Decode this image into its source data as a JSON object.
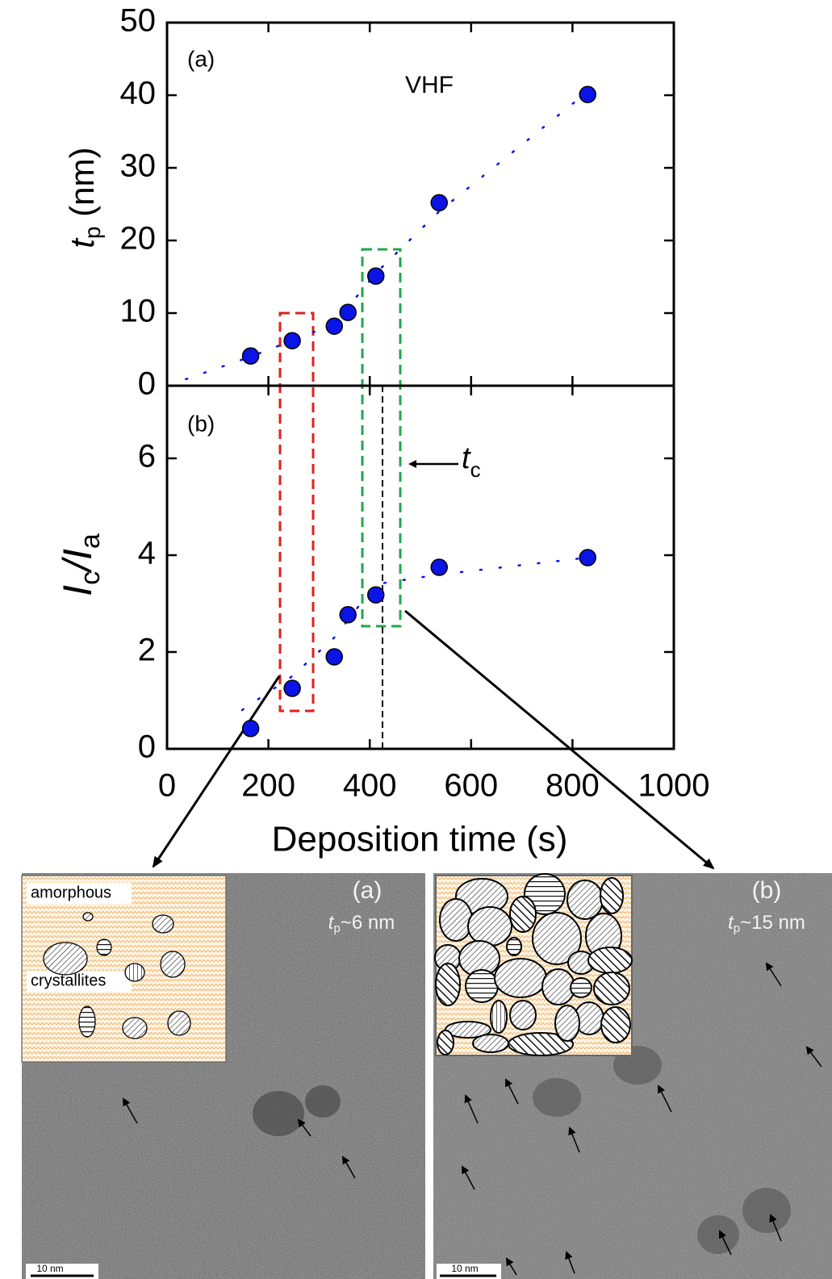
{
  "chart_data": [
    {
      "type": "scatter",
      "panel_label": "(a)",
      "annotation": "VHF",
      "ylabel": {
        "symbol": "t",
        "subscript": "p",
        "unit": " (nm)"
      },
      "xlim": [
        0,
        1000
      ],
      "ylim": [
        0,
        50
      ],
      "yticks": [
        0,
        10,
        20,
        30,
        40,
        50
      ],
      "color": "#0a14e6",
      "x": [
        165,
        247,
        330,
        357,
        412,
        537,
        830
      ],
      "values": [
        4.1,
        6.2,
        8.2,
        10.1,
        15.1,
        25.2,
        40.1
      ],
      "fit": {
        "x": [
          37,
          165,
          330,
          412,
          537,
          830
        ],
        "values": [
          0.9,
          4.0,
          8.5,
          15.5,
          24.0,
          40.5
        ]
      }
    },
    {
      "type": "scatter",
      "panel_label": "(b)",
      "ylabel": {
        "symbol": "I",
        "subscript": "c",
        "slash": "/I",
        "subscript2": "a"
      },
      "xlabel": "Deposition time (s)",
      "marker_label": {
        "symbol": "t",
        "subscript": "c"
      },
      "xlim": [
        0,
        1000
      ],
      "ylim": [
        0,
        7.5
      ],
      "xticks": [
        0,
        200,
        400,
        600,
        800,
        1000
      ],
      "yticks": [
        0,
        2,
        4,
        6
      ],
      "color": "#0a14e6",
      "x": [
        165,
        247,
        330,
        357,
        412,
        537,
        830
      ],
      "values": [
        0.42,
        1.25,
        1.9,
        2.77,
        3.18,
        3.75,
        3.95
      ],
      "fit": {
        "x": [
          148,
          247,
          330,
          412,
          537,
          830
        ],
        "values": [
          0.8,
          1.5,
          2.3,
          3.4,
          3.6,
          3.95
        ]
      }
    }
  ],
  "images": [
    {
      "label": "(a)",
      "thickness": {
        "symbol": "t",
        "subscript": "p",
        "rest": "~6 nm"
      },
      "scale": "10 nm",
      "inset_labels": [
        "amorphous",
        "crystallites"
      ]
    },
    {
      "label": "(b)",
      "thickness": {
        "symbol": "t",
        "subscript": "p",
        "rest": "~15 nm"
      },
      "scale": "10 nm"
    }
  ]
}
